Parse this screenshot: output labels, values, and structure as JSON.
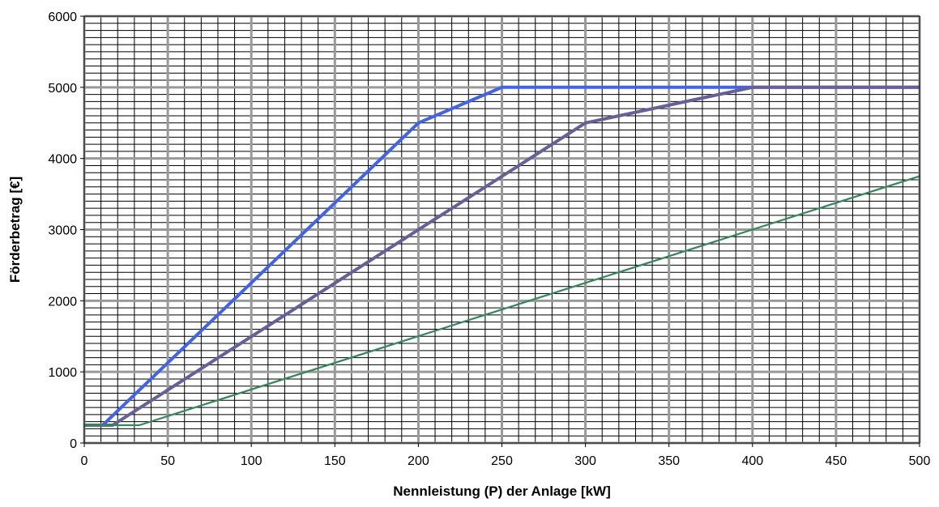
{
  "chart_data": {
    "type": "line",
    "title": "",
    "xlabel": "Nennleistung (P) der Anlage [kW]",
    "ylabel": "Förderbetrag [€]",
    "xlim": [
      0,
      500
    ],
    "ylim": [
      0,
      6000
    ],
    "x_ticks": [
      0,
      50,
      100,
      150,
      200,
      250,
      300,
      350,
      400,
      450,
      500
    ],
    "y_ticks": [
      0,
      1000,
      2000,
      3000,
      4000,
      5000,
      6000
    ],
    "x_tick_labels": [
      "0",
      "50",
      "100",
      "150",
      "200",
      "250",
      "300",
      "350",
      "400",
      "450",
      "500"
    ],
    "y_tick_labels": [
      "0",
      "1000",
      "2000",
      "3000",
      "4000",
      "5000",
      "6000"
    ],
    "grid": true,
    "legend": "none",
    "series": [
      {
        "color": "#3f63f0",
        "x": [
          0,
          11,
          200,
          250,
          500
        ],
        "y": [
          250,
          250,
          4500,
          5000,
          5000
        ]
      },
      {
        "color": "#64619a",
        "x": [
          0,
          17,
          300,
          400,
          500
        ],
        "y": [
          250,
          250,
          4500,
          5000,
          5000
        ]
      },
      {
        "color": "#2e8b57",
        "x": [
          0,
          33,
          500
        ],
        "y": [
          250,
          250,
          3750
        ]
      }
    ]
  }
}
